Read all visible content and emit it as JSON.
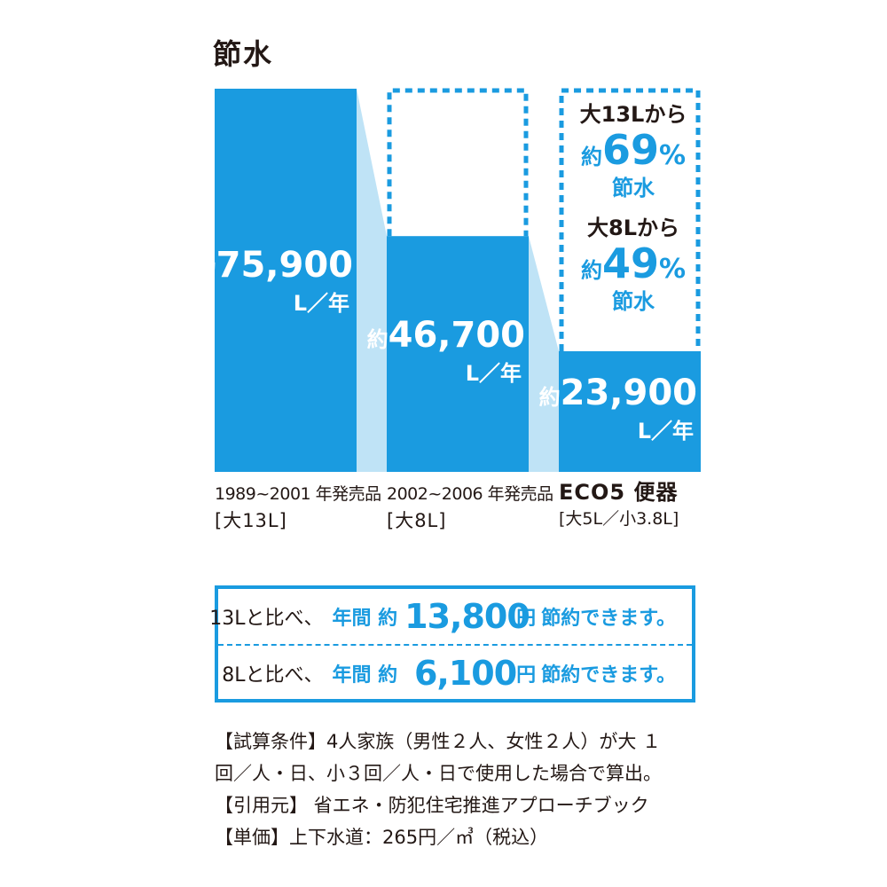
{
  "title": "節水",
  "chart_data": {
    "type": "bar",
    "unit": "L／年",
    "categories": [
      {
        "period": "1989~2001 年発売品",
        "spec": "[大13L]"
      },
      {
        "period": "2002~2006 年発売品",
        "spec": "[大8L]"
      },
      {
        "period": "ECO5 便器",
        "spec": "[大5L／小3.8L]"
      }
    ],
    "series": [
      {
        "values": [
          75900,
          46700,
          23900
        ],
        "labels": [
          "約75,900",
          "約46,700",
          "約23,900"
        ]
      }
    ],
    "reference_outline": {
      "value": 75900
    },
    "annotations": [
      {
        "line1": "大13Lから",
        "prefix": "約",
        "percent": "69",
        "unit": "%",
        "suffix": "節水"
      },
      {
        "line1": "大8Lから",
        "prefix": "約",
        "percent": "49",
        "unit": "%",
        "suffix": "節水"
      }
    ],
    "colors": {
      "bar": "#1a9be0",
      "connector": "#bfe3f6",
      "outline": "#1a9be0"
    },
    "ylim": [
      0,
      75900
    ]
  },
  "cost_savings": [
    {
      "lead": "13Lと比べ、",
      "label": "年間 約",
      "amount": "13,800",
      "unit": "円",
      "tail": "節約できます。"
    },
    {
      "lead": "8Lと比べ、",
      "label": "年間 約",
      "amount": "6,100",
      "unit": "円",
      "tail": "節約できます。"
    }
  ],
  "notes": [
    "【試算条件】4人家族（男性２人、女性２人）が大 １",
    "回／人・日、小３回／人・日で使用した場合で算出。",
    "【引用元】 省エネ・防犯住宅推進アプローチブック",
    "【単価】上下水道：265円／㎥（税込）"
  ]
}
